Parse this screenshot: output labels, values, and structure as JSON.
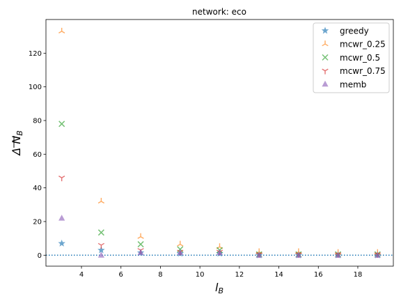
{
  "chart_data": {
    "type": "scatter",
    "title": "network: eco",
    "xlabel": "l",
    "xlabel_sub": "B",
    "ylabel": "Δ N",
    "ylabel_sub": "B",
    "xlim": [
      2.2,
      19.8
    ],
    "ylim": [
      -6.5,
      140
    ],
    "xticks": [
      4,
      6,
      8,
      10,
      12,
      14,
      16,
      18
    ],
    "yticks": [
      0,
      20,
      40,
      60,
      80,
      100,
      120
    ],
    "reference_line": {
      "y": 0,
      "style": "dotted",
      "color": "#1f77b4"
    },
    "legend": {
      "position": "top-right"
    },
    "series": [
      {
        "name": "greedy",
        "marker": "star",
        "color": "#1f77b4",
        "x": [
          3,
          5,
          7,
          9,
          11,
          13,
          15,
          17,
          19
        ],
        "y": [
          7,
          3,
          1.5,
          1,
          1,
          0,
          0,
          0,
          0
        ]
      },
      {
        "name": "mcwr_0.25",
        "marker": "tri_up",
        "color": "#ff7f0e",
        "x": [
          3,
          5,
          7,
          9,
          11,
          13,
          15,
          17,
          19
        ],
        "y": [
          133,
          32,
          11,
          6.5,
          5,
          2,
          2,
          1.5,
          1.5
        ]
      },
      {
        "name": "mcwr_0.5",
        "marker": "x",
        "color": "#2ca02c",
        "x": [
          3,
          5,
          7,
          9,
          11,
          13,
          15,
          17,
          19
        ],
        "y": [
          78,
          13.5,
          6.5,
          3.5,
          3,
          0.5,
          0.5,
          0.5,
          0.5
        ]
      },
      {
        "name": "mcwr_0.75",
        "marker": "tri_down",
        "color": "#d62728",
        "x": [
          3,
          5,
          7,
          9,
          11,
          13,
          15,
          17,
          19
        ],
        "y": [
          46,
          6,
          3,
          2,
          2,
          0.5,
          0.5,
          0.5,
          0.5
        ]
      },
      {
        "name": "memb",
        "marker": "triangle",
        "color": "#9467bd",
        "x": [
          3,
          5,
          7,
          9,
          11,
          13,
          15,
          17,
          19
        ],
        "y": [
          22,
          0,
          1.5,
          1.5,
          1.5,
          0,
          0,
          0,
          0
        ]
      }
    ]
  }
}
